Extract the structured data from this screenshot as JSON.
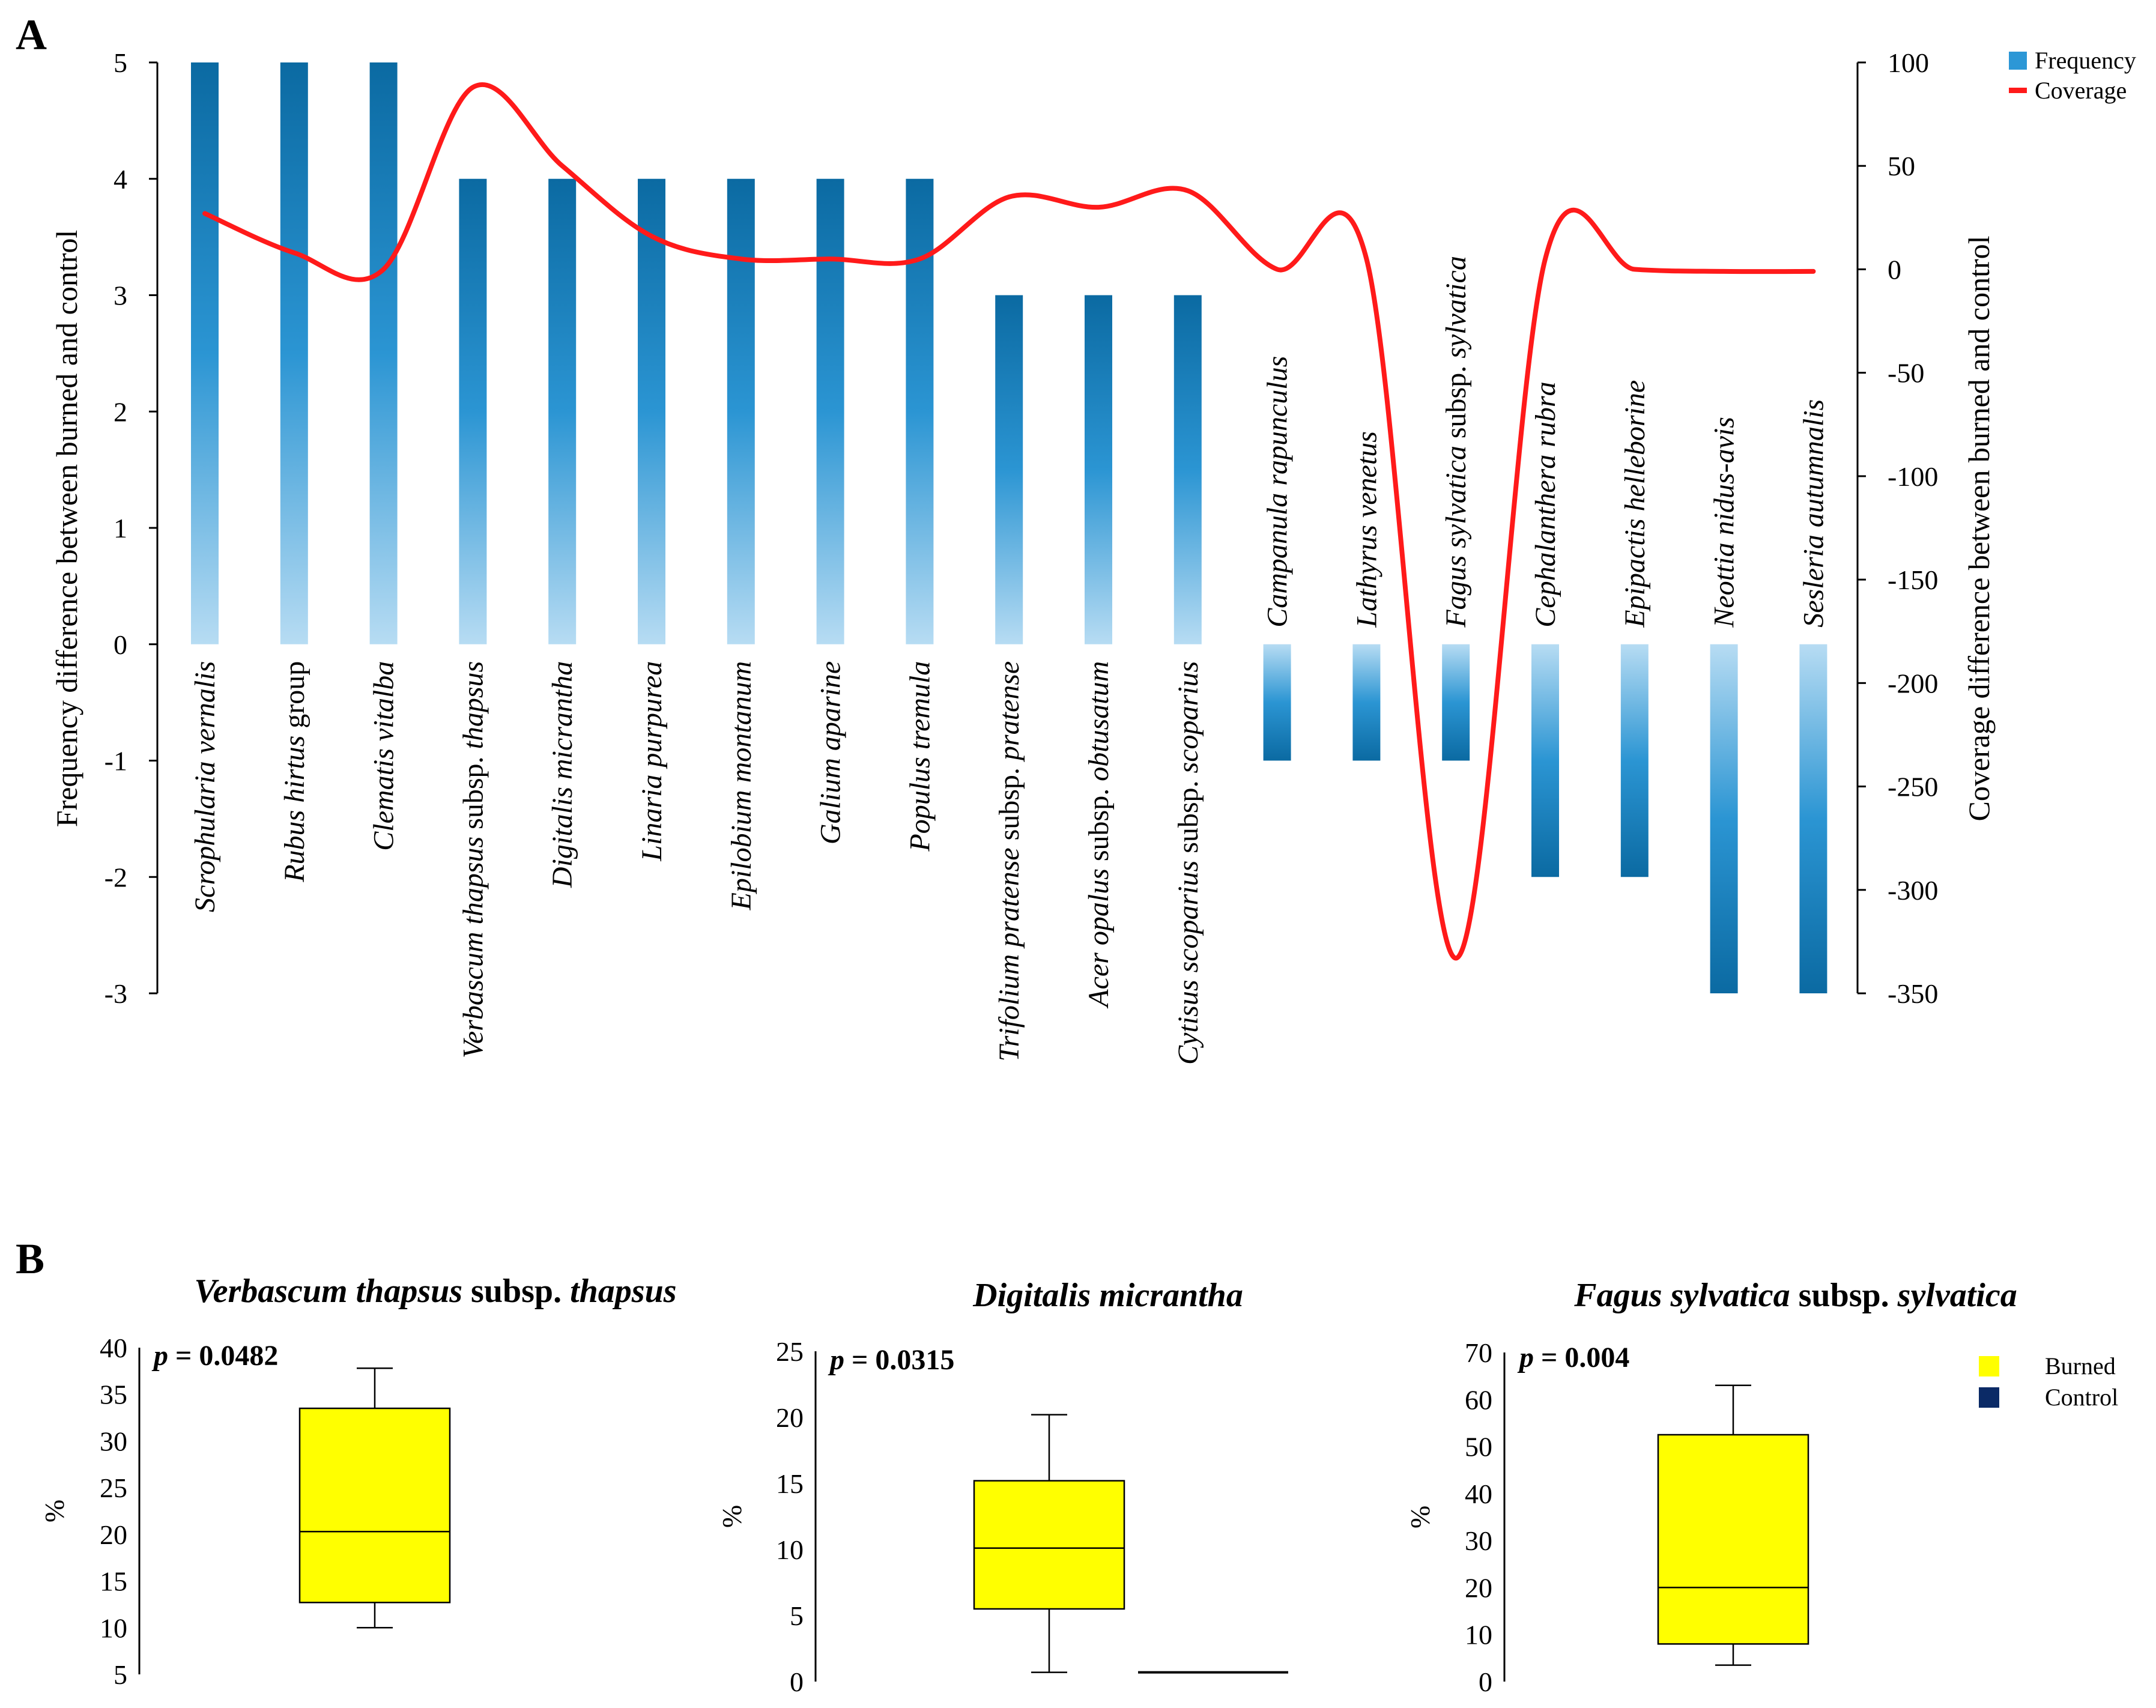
{
  "figure": {
    "panel_a_label": "A",
    "panel_b_label": "B"
  },
  "chart_data": [
    {
      "type": "bar",
      "panel": "A",
      "categories": [
        {
          "italic": "Scrophularia vernalis",
          "plain": ""
        },
        {
          "italic": "Rubus hirtus",
          "plain": " group"
        },
        {
          "italic": "Clematis vitalba",
          "plain": ""
        },
        {
          "italic": "Verbascum thapsus",
          "plain": " subsp. ",
          "italic2": "thapsus"
        },
        {
          "italic": "Digitalis micrantha",
          "plain": ""
        },
        {
          "italic": "Linaria purpurea",
          "plain": ""
        },
        {
          "italic": "Epilobium montanum",
          "plain": ""
        },
        {
          "italic": "Galium aparine",
          "plain": ""
        },
        {
          "italic": "Populus tremula",
          "plain": ""
        },
        {
          "italic": "Trifolium pratense",
          "plain": " subsp. ",
          "italic2": "pratense"
        },
        {
          "italic": "Acer opalus",
          "plain": " subsp. ",
          "italic2": "obtusatum"
        },
        {
          "italic": "Cytisus scoparius",
          "plain": " subsp. ",
          "italic2": "scoparius"
        },
        {
          "italic": "Campanula rapunculus",
          "plain": ""
        },
        {
          "italic": "Lathyrus venetus",
          "plain": ""
        },
        {
          "italic": "Fagus sylvatica",
          "plain": " subsp. ",
          "italic2": "sylvatica"
        },
        {
          "italic": "Cephalanthera rubra",
          "plain": ""
        },
        {
          "italic": "Epipactis helleborine",
          "plain": ""
        },
        {
          "italic": "Neottia nidus-avis",
          "plain": ""
        },
        {
          "italic": "Sesleria autumnalis",
          "plain": ""
        }
      ],
      "series": [
        {
          "name": "Frequency",
          "axis": "left",
          "kind": "bar",
          "values": [
            5,
            5,
            5,
            4,
            4,
            4,
            4,
            4,
            4,
            3,
            3,
            3,
            -1,
            -1,
            -1,
            -2,
            -2,
            -3,
            -3
          ]
        },
        {
          "name": "Coverage",
          "axis": "right",
          "kind": "smooth-line",
          "values": [
            27,
            8,
            0,
            88,
            50,
            16,
            5,
            5,
            5,
            35,
            30,
            38,
            0,
            5,
            -333,
            5,
            0,
            -1,
            -1
          ]
        }
      ],
      "ylabel": "Frequency difference between burned and control",
      "y2label": "Coverage difference between burned and control",
      "ylim": [
        -3,
        5
      ],
      "yticks": [
        "-3",
        "-2",
        "-1",
        "0",
        "1",
        "2",
        "3",
        "4",
        "5"
      ],
      "y2lim": [
        -350,
        100
      ],
      "y2ticks": [
        "-350",
        "-300",
        "-250",
        "-200",
        "-150",
        "-100",
        "-50",
        "0",
        "50",
        "100"
      ],
      "legend": [
        "Frequency",
        "Coverage"
      ],
      "legend_position": "top-right",
      "colors": {
        "bar_dark": "#0b6aa2",
        "bar_light": "#b7dcf3",
        "line": "#ff1a1a",
        "legend_bar": "#2c97d6"
      }
    },
    {
      "type": "boxplot",
      "panel": "B",
      "title": {
        "italic": "Verbascum thapsus",
        "plain": " subsp. ",
        "italic2": "thapsus"
      },
      "pvalue": {
        "p": "p",
        "rest": " = 0.0482"
      },
      "ylabel": "%",
      "ylim": [
        5,
        40
      ],
      "yticks": [
        "5",
        "10",
        "15",
        "20",
        "25",
        "30",
        "35",
        "40"
      ],
      "boxes": [
        {
          "group": "Burned",
          "min": 10,
          "q1": 12.7,
          "median": 20.3,
          "q3": 33.5,
          "max": 37.8
        },
        {
          "group": "Control",
          "min": null,
          "q1": null,
          "median": null,
          "q3": null,
          "max": null
        }
      ]
    },
    {
      "type": "boxplot",
      "panel": "B",
      "title": {
        "italic": "Digitalis micrantha",
        "plain": ""
      },
      "pvalue": {
        "p": "p",
        "rest": " = 0.0315"
      },
      "ylabel": "%",
      "ylim": [
        0,
        25
      ],
      "yticks": [
        "0",
        "5",
        "10",
        "15",
        "20",
        "25"
      ],
      "boxes": [
        {
          "group": "Burned",
          "min": 0.7,
          "q1": 5.5,
          "median": 10.1,
          "q3": 15.2,
          "max": 20.2
        },
        {
          "group": "Control",
          "min": 0.7,
          "q1": 0.7,
          "median": 0.7,
          "q3": 0.7,
          "max": 0.7
        }
      ]
    },
    {
      "type": "boxplot",
      "panel": "B",
      "title": {
        "italic": "Fagus sylvatica",
        "plain": " subsp. ",
        "italic2": "sylvatica"
      },
      "pvalue": {
        "p": "p",
        "rest": " = 0.004"
      },
      "ylabel": "%",
      "ylim": [
        0,
        70
      ],
      "yticks": [
        "0",
        "10",
        "20",
        "30",
        "40",
        "50",
        "60",
        "70"
      ],
      "boxes": [
        {
          "group": "Burned",
          "min": 3.5,
          "q1": 8,
          "median": 20,
          "q3": 52.5,
          "max": 63
        },
        {
          "group": "Control",
          "min": null,
          "q1": null,
          "median": null,
          "q3": null,
          "max": null
        }
      ],
      "legend": [
        "Burned",
        "Control"
      ],
      "colors": {
        "burned": "#ffff00",
        "control": "#0b2a66"
      }
    }
  ]
}
